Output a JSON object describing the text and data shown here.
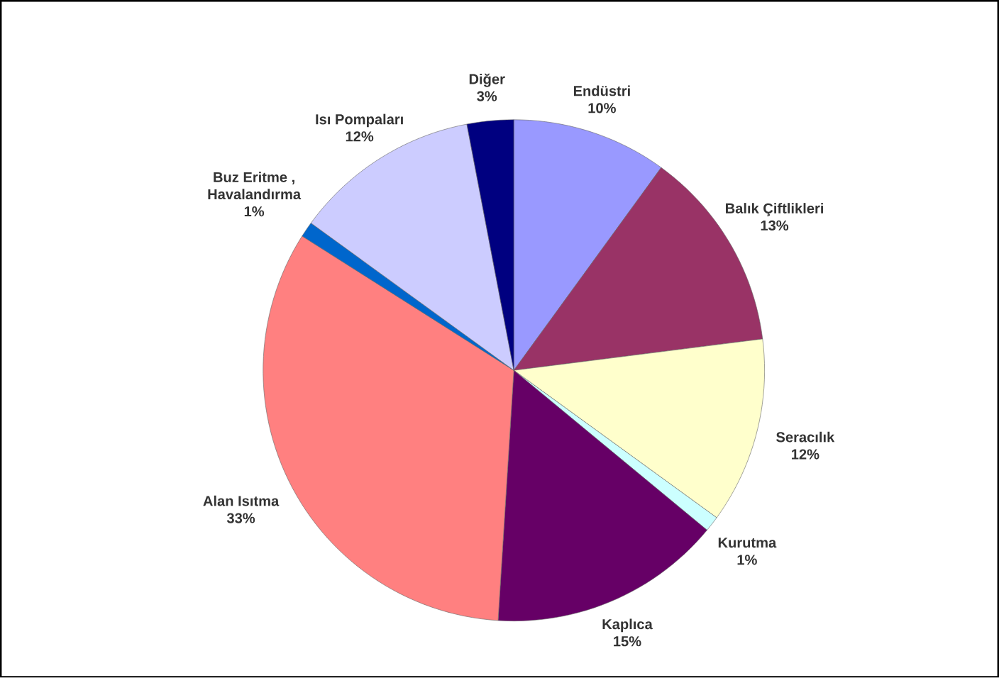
{
  "chart_data": {
    "type": "pie",
    "categories": [
      "Endüstri",
      "Balık Çiftlikleri",
      "Seracılık",
      "Kurutma",
      "Kaplıca",
      "Alan Isıtma",
      "Buz Eritme , Havalandırma",
      "Isı Pompaları",
      "Diğer"
    ],
    "values": [
      10,
      13,
      12,
      1,
      15,
      33,
      1,
      12,
      3
    ],
    "value_labels": [
      "10%",
      "13%",
      "12%",
      "1%",
      "15%",
      "33%",
      "1%",
      "12%",
      "3%"
    ],
    "colors": [
      "#9999ff",
      "#993366",
      "#ffffcc",
      "#ccffff",
      "#660066",
      "#ff8080",
      "#0066cc",
      "#ccccff",
      "#000080"
    ]
  }
}
